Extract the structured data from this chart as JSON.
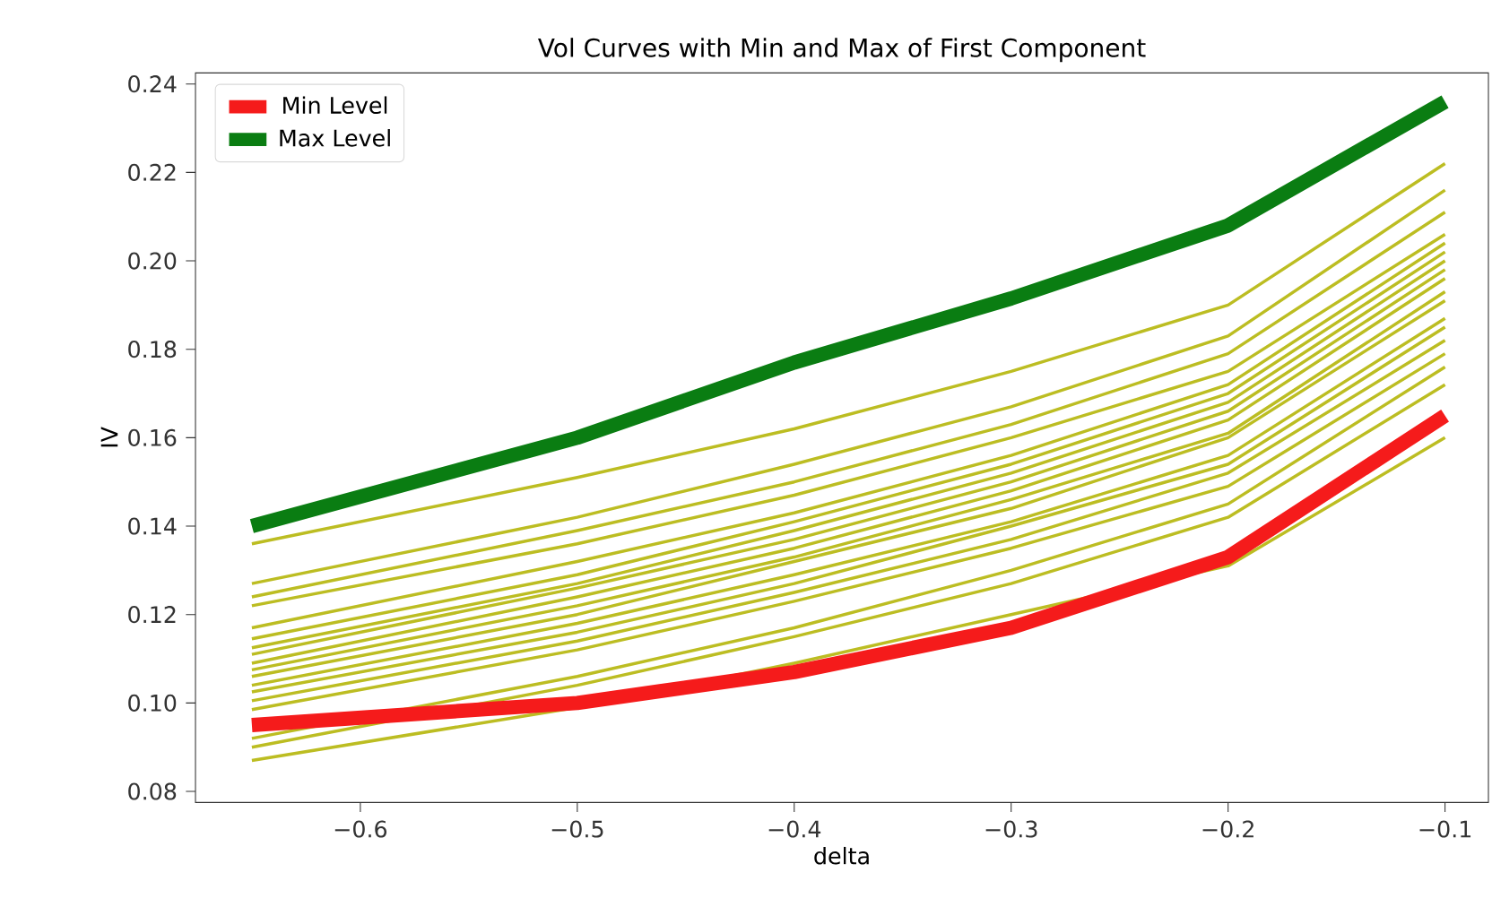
{
  "chart_data": {
    "type": "line",
    "title": "Vol Curves with Min and Max of First Component",
    "xlabel": "delta",
    "ylabel": "IV",
    "x": [
      -0.65,
      -0.5,
      -0.4,
      -0.3,
      -0.2,
      -0.1
    ],
    "xlim": [
      -0.676,
      -0.08
    ],
    "ylim": [
      0.0775,
      0.2425
    ],
    "xticks": [
      {
        "value": -0.6,
        "label": "−0.6"
      },
      {
        "value": -0.5,
        "label": "−0.5"
      },
      {
        "value": -0.4,
        "label": "−0.4"
      },
      {
        "value": -0.3,
        "label": "−0.3"
      },
      {
        "value": -0.2,
        "label": "−0.2"
      },
      {
        "value": -0.1,
        "label": "−0.1"
      }
    ],
    "yticks": [
      {
        "value": 0.08,
        "label": "0.08"
      },
      {
        "value": 0.1,
        "label": "0.10"
      },
      {
        "value": 0.12,
        "label": "0.12"
      },
      {
        "value": 0.14,
        "label": "0.14"
      },
      {
        "value": 0.16,
        "label": "0.16"
      },
      {
        "value": 0.18,
        "label": "0.18"
      },
      {
        "value": 0.2,
        "label": "0.20"
      },
      {
        "value": 0.22,
        "label": "0.22"
      },
      {
        "value": 0.24,
        "label": "0.24"
      }
    ],
    "grid": false,
    "legend": "top left",
    "marker": "none",
    "line_style": "solid",
    "series": [
      {
        "color": "#bcbd22",
        "values": [
          0.136,
          0.151,
          0.162,
          0.175,
          0.19,
          0.222
        ]
      },
      {
        "color": "#bcbd22",
        "values": [
          0.127,
          0.142,
          0.154,
          0.167,
          0.183,
          0.216
        ]
      },
      {
        "color": "#bcbd22",
        "values": [
          0.124,
          0.139,
          0.15,
          0.163,
          0.179,
          0.211
        ]
      },
      {
        "color": "#bcbd22",
        "values": [
          0.122,
          0.136,
          0.147,
          0.16,
          0.175,
          0.206
        ]
      },
      {
        "color": "#bcbd22",
        "values": [
          0.117,
          0.132,
          0.143,
          0.156,
          0.172,
          0.204
        ]
      },
      {
        "color": "#bcbd22",
        "values": [
          0.1145,
          0.129,
          0.141,
          0.154,
          0.17,
          0.202
        ]
      },
      {
        "color": "#bcbd22",
        "values": [
          0.1125,
          0.127,
          0.139,
          0.152,
          0.168,
          0.2
        ]
      },
      {
        "color": "#bcbd22",
        "values": [
          0.111,
          0.126,
          0.137,
          0.15,
          0.166,
          0.198
        ]
      },
      {
        "color": "#bcbd22",
        "values": [
          0.109,
          0.124,
          0.135,
          0.148,
          0.164,
          0.196
        ]
      },
      {
        "color": "#bcbd22",
        "values": [
          0.1075,
          0.122,
          0.133,
          0.146,
          0.161,
          0.193
        ]
      },
      {
        "color": "#bcbd22",
        "values": [
          0.106,
          0.12,
          0.132,
          0.144,
          0.16,
          0.191
        ]
      },
      {
        "color": "#bcbd22",
        "values": [
          0.104,
          0.118,
          0.129,
          0.141,
          0.156,
          0.187
        ]
      },
      {
        "color": "#bcbd22",
        "values": [
          0.1025,
          0.116,
          0.127,
          0.14,
          0.154,
          0.185
        ]
      },
      {
        "color": "#bcbd22",
        "values": [
          0.1005,
          0.114,
          0.125,
          0.137,
          0.152,
          0.182
        ]
      },
      {
        "color": "#bcbd22",
        "values": [
          0.0985,
          0.112,
          0.123,
          0.135,
          0.149,
          0.179
        ]
      },
      {
        "color": "#bcbd22",
        "values": [
          0.092,
          0.106,
          0.117,
          0.13,
          0.145,
          0.176
        ]
      },
      {
        "color": "#bcbd22",
        "values": [
          0.09,
          0.104,
          0.115,
          0.127,
          0.142,
          0.172
        ]
      },
      {
        "color": "#bcbd22",
        "values": [
          0.087,
          0.099,
          0.109,
          0.12,
          0.131,
          0.16
        ]
      },
      {
        "name": "Min Level",
        "color": "#f51b1b",
        "values": [
          0.095,
          0.1,
          0.107,
          0.117,
          0.133,
          0.165
        ]
      },
      {
        "name": "Max Level",
        "color": "#0a7d12",
        "values": [
          0.14,
          0.16,
          0.177,
          0.1915,
          0.208,
          0.236
        ]
      }
    ]
  }
}
